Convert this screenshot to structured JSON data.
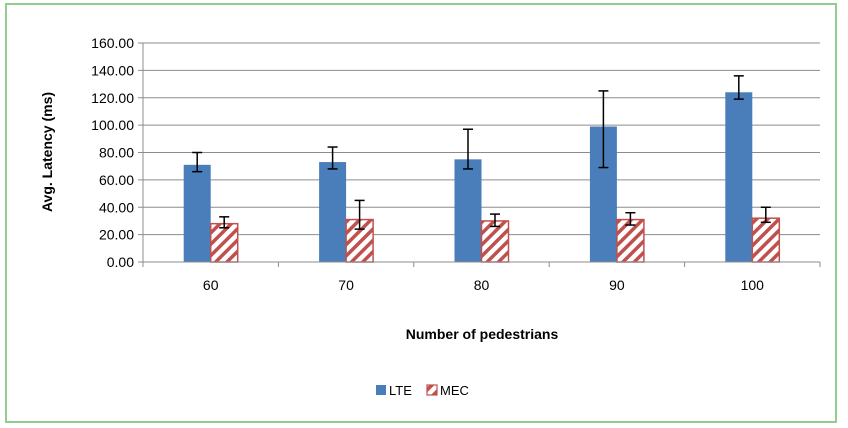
{
  "chart_data": {
    "type": "bar",
    "title": "",
    "xlabel": "Number of pedestrians",
    "ylabel": "Avg. Latency (ms)",
    "categories": [
      "60",
      "70",
      "80",
      "90",
      "100"
    ],
    "ylim": [
      0,
      160
    ],
    "yticks": [
      "0.00",
      "20.00",
      "40.00",
      "60.00",
      "80.00",
      "100.00",
      "120.00",
      "140.00",
      "160.00"
    ],
    "grid": true,
    "legend_position": "bottom",
    "series": [
      {
        "name": "LTE",
        "values": [
          71,
          73,
          75,
          99,
          124
        ],
        "err_low": [
          66,
          68,
          68,
          69,
          119
        ],
        "err_high": [
          80,
          84,
          97,
          125,
          136
        ],
        "color": "#4a7ebb",
        "pattern": "solid"
      },
      {
        "name": "MEC",
        "values": [
          28,
          31,
          30,
          31,
          32
        ],
        "err_low": [
          25,
          24,
          26,
          27,
          29
        ],
        "err_high": [
          33,
          45,
          35,
          36,
          40
        ],
        "color": "#c0504d",
        "pattern": "diagonal-hatch"
      }
    ]
  }
}
